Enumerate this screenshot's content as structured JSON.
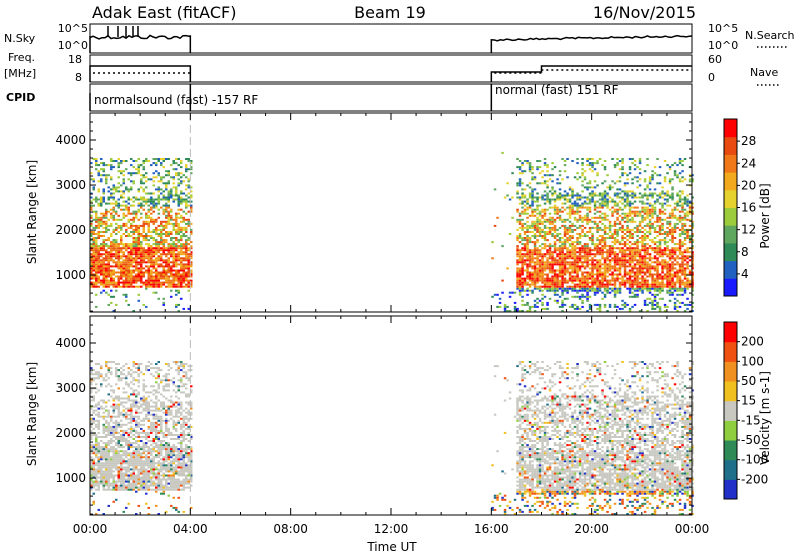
{
  "header": {
    "station": "Adak East (fitACF)",
    "beam": "Beam 19",
    "date": "16/Nov/2015"
  },
  "labels": {
    "nsky": "N.Sky",
    "nsearch": "N.Search",
    "freq": "Freq.",
    "freq_unit": "[MHz]",
    "nave": "Nave",
    "cpid": "CPID",
    "nsky_ticks": [
      "10^5",
      "10^0"
    ],
    "nsearch_ticks": [
      "10^5",
      "10^0"
    ],
    "freq_ticks": [
      "18",
      "8"
    ],
    "nave_ticks": [
      "60",
      "0"
    ]
  },
  "cpid_segments": [
    {
      "text": "normalsound (fast) -157 RF",
      "start_hr": 0,
      "end_hr": 4
    },
    {
      "text": "normal (fast) 151 RF",
      "start_hr": 16,
      "end_hr": 24
    }
  ],
  "chart_data": [
    {
      "type": "heatmap",
      "parameter": "power",
      "ylabel": "Slant Range [km]",
      "xlabel": "Time UT",
      "x_ticks": [
        "00:00",
        "04:00",
        "08:00",
        "12:00",
        "16:00",
        "20:00",
        "00:00"
      ],
      "xlim_hours": [
        0,
        24
      ],
      "ylim_km": [
        180,
        4600
      ],
      "y_ticks": [
        1000,
        2000,
        3000,
        4000
      ],
      "colorbar": {
        "label": "Power [dB]",
        "ticks": [
          28,
          24,
          20,
          16,
          12,
          8,
          4
        ],
        "range": [
          0,
          32
        ]
      },
      "data_intervals_hr": [
        [
          0,
          4
        ],
        [
          16,
          24
        ]
      ]
    },
    {
      "type": "heatmap",
      "parameter": "velocity",
      "ylabel": "Slant Range [km]",
      "xlabel": "Time UT",
      "x_ticks": [
        "00:00",
        "04:00",
        "08:00",
        "12:00",
        "16:00",
        "20:00",
        "00:00"
      ],
      "xlim_hours": [
        0,
        24
      ],
      "ylim_km": [
        180,
        4600
      ],
      "y_ticks": [
        1000,
        2000,
        3000,
        4000
      ],
      "colorbar": {
        "label": "Velocity [m s-1]",
        "ticks": [
          200,
          100,
          50,
          15,
          -15,
          -50,
          -100,
          -200
        ]
      },
      "data_intervals_hr": [
        [
          0,
          4
        ],
        [
          16,
          24
        ]
      ]
    }
  ],
  "colors": {
    "power_scale": [
      "#1a1aff",
      "#2060c0",
      "#2e8b57",
      "#5fa65f",
      "#9ccc3c",
      "#e6d22e",
      "#f2a91e",
      "#f07818",
      "#e84a10",
      "#ff0000"
    ],
    "velocity_scale": [
      "#2030c8",
      "#1f6f8b",
      "#2e8b57",
      "#8fcf3f",
      "#c8c8c0",
      "#f0c020",
      "#f09020",
      "#f05010",
      "#ff0000"
    ],
    "grey": "#c8c8c0"
  }
}
